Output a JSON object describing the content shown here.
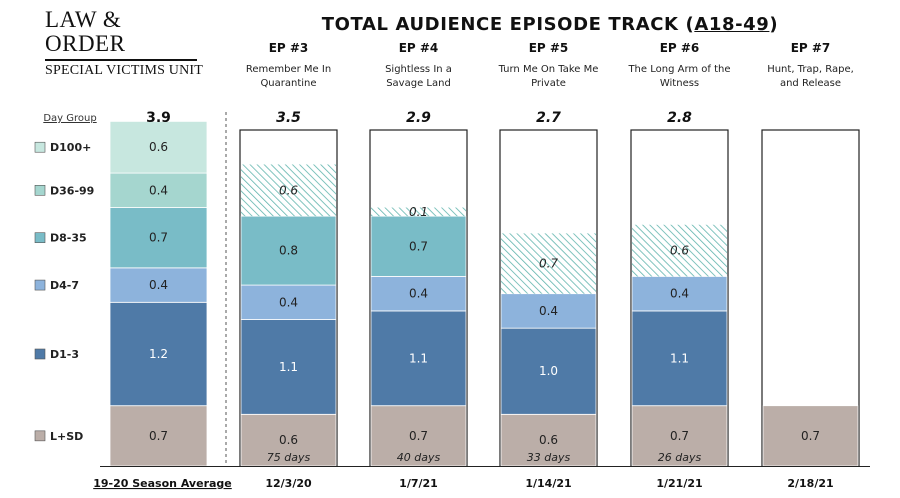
{
  "logo": {
    "line1": "LAW & ORDER",
    "line2": "SPECIAL VICTIMS UNIT"
  },
  "title": {
    "main": "TOTAL AUDIENCE EPISODE TRACK",
    "paren_open": "(",
    "demo": "A18-49",
    "paren_close": ")"
  },
  "chart_data": {
    "type": "bar",
    "stacked": true,
    "legend_header": "Day Group",
    "segment_order": [
      "L+SD",
      "D1-3",
      "D4-7",
      "D8-35",
      "D36-99",
      "D100+"
    ],
    "colors": {
      "L+SD": "#bbaea8",
      "D1-3": "#4f7aa7",
      "D4-7": "#8db3dc",
      "D8-35": "#79bcc7",
      "D36-99": "#a5d6cf",
      "D100+": "#c7e7df",
      "projected": "#5fb4ad"
    },
    "columns": [
      {
        "ep": "",
        "name": "",
        "total": "3.9",
        "date": "19-20 Season Average",
        "days": "",
        "outlined": false,
        "segments": [
          {
            "group": "L+SD",
            "value": 0.7,
            "label": "0.7"
          },
          {
            "group": "D1-3",
            "value": 1.2,
            "label": "1.2"
          },
          {
            "group": "D4-7",
            "value": 0.4,
            "label": "0.4"
          },
          {
            "group": "D8-35",
            "value": 0.7,
            "label": "0.7"
          },
          {
            "group": "D36-99",
            "value": 0.4,
            "label": "0.4"
          },
          {
            "group": "D100+",
            "value": 0.6,
            "label": "0.6"
          }
        ]
      },
      {
        "ep": "EP #3",
        "name": "Remember Me In Quarantine",
        "total": "3.5",
        "date": "12/3/20",
        "days": "75 days",
        "outlined": true,
        "segments": [
          {
            "group": "L+SD",
            "value": 0.6,
            "label": "0.6"
          },
          {
            "group": "D1-3",
            "value": 1.1,
            "label": "1.1"
          },
          {
            "group": "D4-7",
            "value": 0.4,
            "label": "0.4"
          },
          {
            "group": "D8-35",
            "value": 0.8,
            "label": "0.8"
          },
          {
            "group": "projected",
            "value": 0.6,
            "label": "0.6"
          }
        ]
      },
      {
        "ep": "EP #4",
        "name": "Sightless In a Savage Land",
        "total": "2.9",
        "date": "1/7/21",
        "days": "40 days",
        "outlined": true,
        "segments": [
          {
            "group": "L+SD",
            "value": 0.7,
            "label": "0.7"
          },
          {
            "group": "D1-3",
            "value": 1.1,
            "label": "1.1"
          },
          {
            "group": "D4-7",
            "value": 0.4,
            "label": "0.4"
          },
          {
            "group": "D8-35",
            "value": 0.7,
            "label": "0.7"
          },
          {
            "group": "projected",
            "value": 0.1,
            "label": "0.1"
          }
        ]
      },
      {
        "ep": "EP #5",
        "name": "Turn Me On Take Me Private",
        "total": "2.7",
        "date": "1/14/21",
        "days": "33 days",
        "outlined": true,
        "segments": [
          {
            "group": "L+SD",
            "value": 0.6,
            "label": "0.6"
          },
          {
            "group": "D1-3",
            "value": 1.0,
            "label": "1.0"
          },
          {
            "group": "D4-7",
            "value": 0.4,
            "label": "0.4"
          },
          {
            "group": "projected",
            "value": 0.7,
            "label": "0.7"
          }
        ]
      },
      {
        "ep": "EP #6",
        "name": "The Long Arm of the Witness",
        "total": "2.8",
        "date": "1/21/21",
        "days": "26 days",
        "outlined": true,
        "segments": [
          {
            "group": "L+SD",
            "value": 0.7,
            "label": "0.7"
          },
          {
            "group": "D1-3",
            "value": 1.1,
            "label": "1.1"
          },
          {
            "group": "D4-7",
            "value": 0.4,
            "label": "0.4"
          },
          {
            "group": "projected",
            "value": 0.6,
            "label": "0.6"
          }
        ]
      },
      {
        "ep": "EP #7",
        "name": "Hunt, Trap, Rape, and Release",
        "total": "",
        "date": "2/18/21",
        "days": "",
        "outlined": true,
        "segments": [
          {
            "group": "L+SD",
            "value": 0.7,
            "label": "0.7"
          }
        ]
      }
    ],
    "ylim": [
      0,
      3.9
    ]
  }
}
